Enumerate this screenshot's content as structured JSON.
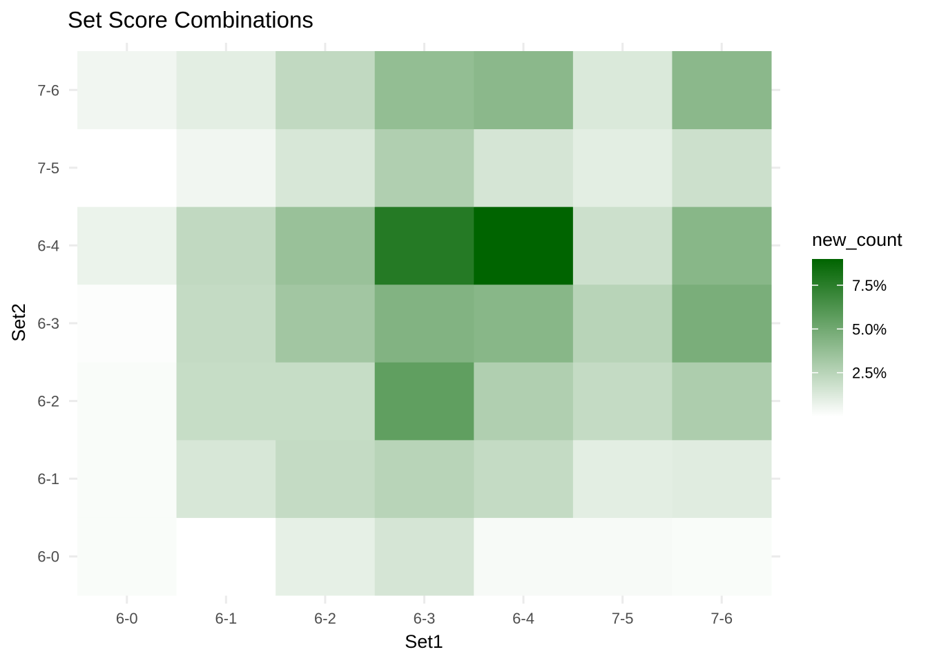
{
  "chart_data": {
    "type": "heatmap",
    "title": "Set Score Combinations",
    "xlabel": "Set1",
    "ylabel": "Set2",
    "x_categories": [
      "6-0",
      "6-1",
      "6-2",
      "6-3",
      "6-4",
      "7-5",
      "7-6"
    ],
    "y_categories": [
      "6-0",
      "6-1",
      "6-2",
      "6-3",
      "6-4",
      "7-5",
      "7-6"
    ],
    "values": [
      [
        0.2,
        0.0,
        0.9,
        1.5,
        0.3,
        0.3,
        0.2
      ],
      [
        0.2,
        1.4,
        2.1,
        2.5,
        2.1,
        1.0,
        1.1
      ],
      [
        0.2,
        2.0,
        2.0,
        5.6,
        2.8,
        2.1,
        2.9
      ],
      [
        0.1,
        2.1,
        3.3,
        4.4,
        4.2,
        2.5,
        4.7
      ],
      [
        0.7,
        2.2,
        3.6,
        7.7,
        9.0,
        1.8,
        4.2
      ],
      [
        0.0,
        0.5,
        1.4,
        2.8,
        1.5,
        1.0,
        1.8
      ],
      [
        0.5,
        1.0,
        2.2,
        3.8,
        4.1,
        1.3,
        4.1
      ]
    ],
    "legend": {
      "title": "new_count",
      "ticks": [
        {
          "value": 2.5,
          "label": "2.5%"
        },
        {
          "value": 5.0,
          "label": "5.0%"
        },
        {
          "value": 7.5,
          "label": "7.5%"
        }
      ],
      "range": [
        0,
        9.0
      ],
      "low_color": "#ffffff",
      "high_color": "#006400",
      "placement": "right"
    },
    "grid": true
  }
}
